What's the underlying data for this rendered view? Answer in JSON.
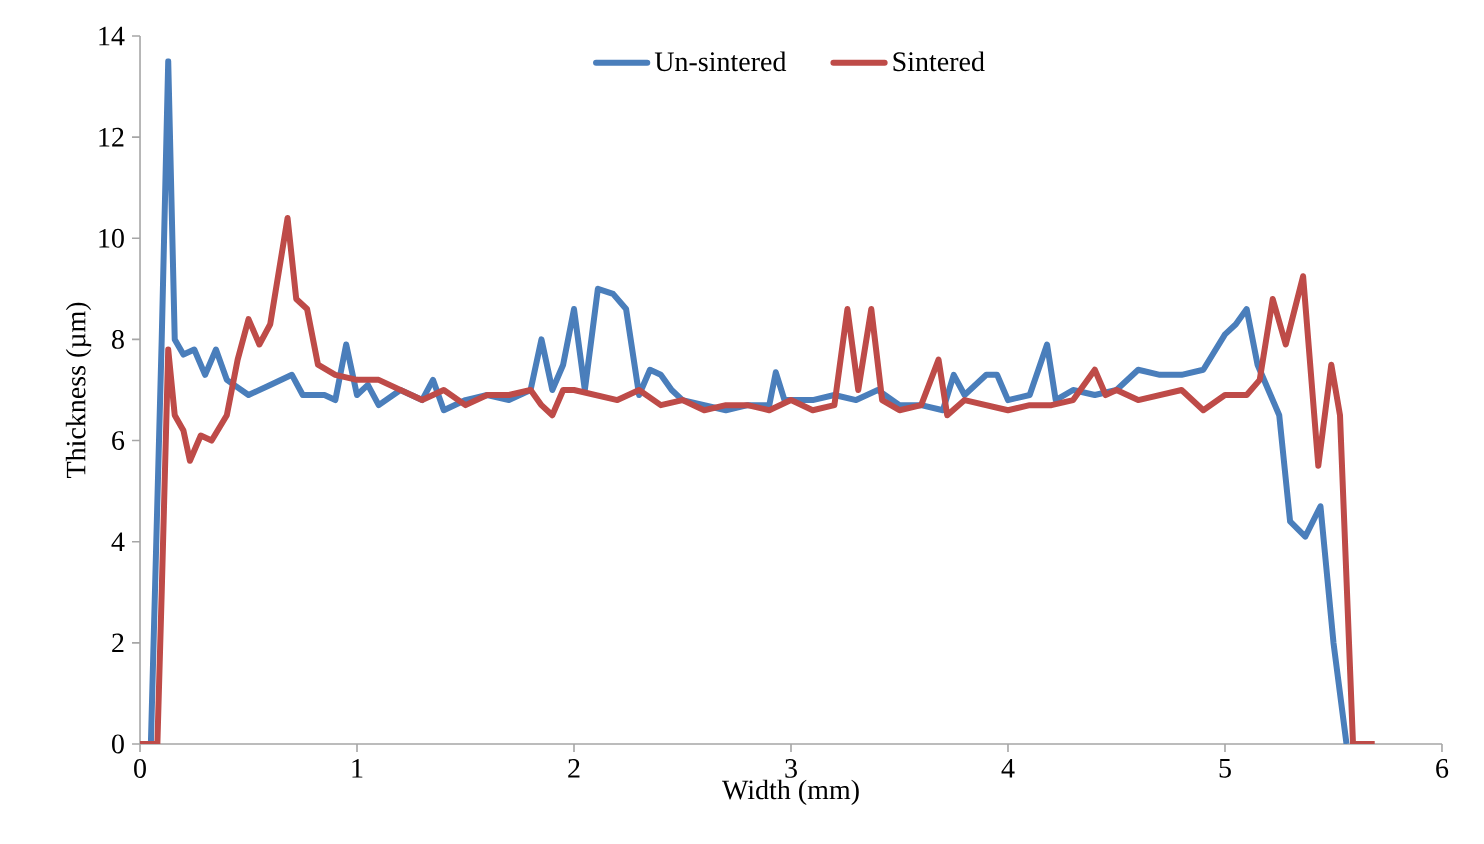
{
  "chart_data": {
    "type": "line",
    "xlabel": "Width (mm)",
    "ylabel": "Thickness (µm)",
    "xlim": [
      0,
      6
    ],
    "ylim": [
      0,
      14
    ],
    "xticks": [
      0,
      1,
      2,
      3,
      4,
      5,
      6
    ],
    "yticks": [
      0,
      2,
      4,
      6,
      8,
      10,
      12,
      14
    ],
    "grid": false,
    "legend": "top",
    "marker": "none",
    "line_style": "solid",
    "series": [
      {
        "name": "Un-sintered",
        "color": "#4a7ebb",
        "x": [
          0.05,
          0.1,
          0.13,
          0.16,
          0.2,
          0.25,
          0.3,
          0.35,
          0.4,
          0.5,
          0.6,
          0.7,
          0.75,
          0.85,
          0.9,
          0.95,
          1.0,
          1.05,
          1.1,
          1.2,
          1.3,
          1.35,
          1.4,
          1.5,
          1.6,
          1.7,
          1.8,
          1.85,
          1.9,
          1.95,
          2.0,
          2.05,
          2.11,
          2.18,
          2.24,
          2.3,
          2.35,
          2.4,
          2.45,
          2.5,
          2.6,
          2.7,
          2.8,
          2.9,
          2.93,
          2.97,
          3.1,
          3.2,
          3.3,
          3.4,
          3.5,
          3.6,
          3.7,
          3.75,
          3.8,
          3.9,
          3.95,
          4.0,
          4.1,
          4.18,
          4.22,
          4.3,
          4.4,
          4.5,
          4.6,
          4.7,
          4.8,
          4.9,
          5.0,
          5.05,
          5.1,
          5.15,
          5.2,
          5.25,
          5.3,
          5.37,
          5.44,
          5.5,
          5.56
        ],
        "values": [
          0,
          8,
          13.5,
          8,
          7.7,
          7.8,
          7.3,
          7.8,
          7.2,
          6.9,
          7.1,
          7.3,
          6.9,
          6.9,
          6.8,
          7.9,
          6.9,
          7.1,
          6.7,
          7.0,
          6.8,
          7.2,
          6.6,
          6.8,
          6.9,
          6.8,
          7.0,
          8.0,
          7.0,
          7.5,
          8.6,
          7.0,
          9.0,
          8.9,
          8.6,
          6.9,
          7.4,
          7.3,
          7.0,
          6.8,
          6.7,
          6.6,
          6.7,
          6.7,
          7.35,
          6.8,
          6.8,
          6.9,
          6.8,
          7.0,
          6.7,
          6.7,
          6.6,
          7.3,
          6.9,
          7.3,
          7.3,
          6.8,
          6.9,
          7.9,
          6.8,
          7.0,
          6.9,
          7.0,
          7.4,
          7.3,
          7.3,
          7.4,
          8.1,
          8.3,
          8.6,
          7.5,
          7.0,
          6.5,
          4.4,
          4.1,
          4.7,
          2.0,
          0
        ]
      },
      {
        "name": "Sintered",
        "color": "#be4b48",
        "x": [
          0,
          0.08,
          0.1,
          0.13,
          0.16,
          0.2,
          0.23,
          0.28,
          0.33,
          0.4,
          0.45,
          0.5,
          0.55,
          0.6,
          0.68,
          0.72,
          0.77,
          0.82,
          0.9,
          1.0,
          1.1,
          1.2,
          1.3,
          1.4,
          1.5,
          1.6,
          1.7,
          1.8,
          1.85,
          1.9,
          1.95,
          2.0,
          2.1,
          2.2,
          2.3,
          2.4,
          2.5,
          2.6,
          2.7,
          2.8,
          2.9,
          3.0,
          3.1,
          3.2,
          3.26,
          3.31,
          3.37,
          3.42,
          3.5,
          3.6,
          3.68,
          3.72,
          3.8,
          3.9,
          4.0,
          4.1,
          4.2,
          4.3,
          4.4,
          4.45,
          4.5,
          4.6,
          4.7,
          4.8,
          4.9,
          5.0,
          5.1,
          5.16,
          5.22,
          5.28,
          5.36,
          5.43,
          5.49,
          5.53,
          5.59,
          5.69
        ],
        "values": [
          0,
          0,
          3,
          7.8,
          6.5,
          6.2,
          5.6,
          6.1,
          6.0,
          6.5,
          7.6,
          8.4,
          7.9,
          8.3,
          10.4,
          8.8,
          8.6,
          7.5,
          7.3,
          7.2,
          7.2,
          7.0,
          6.8,
          7.0,
          6.7,
          6.9,
          6.9,
          7.0,
          6.7,
          6.5,
          7.0,
          7.0,
          6.9,
          6.8,
          7.0,
          6.7,
          6.8,
          6.6,
          6.7,
          6.7,
          6.6,
          6.8,
          6.6,
          6.7,
          8.6,
          7.0,
          8.6,
          6.8,
          6.6,
          6.7,
          7.6,
          6.5,
          6.8,
          6.7,
          6.6,
          6.7,
          6.7,
          6.8,
          7.4,
          6.9,
          7.0,
          6.8,
          6.9,
          7.0,
          6.6,
          6.9,
          6.9,
          7.2,
          8.8,
          7.9,
          9.25,
          5.5,
          7.5,
          6.5,
          0,
          0
        ]
      }
    ]
  }
}
